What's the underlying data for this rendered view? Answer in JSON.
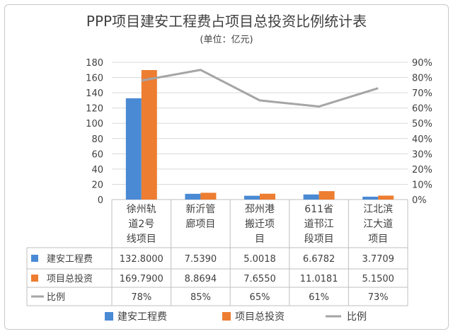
{
  "chart_data": {
    "type": "bar",
    "title": "PPP项目建安工程费占项目总投资比例统计表",
    "subtitle": "(单位：亿元)",
    "categories": [
      [
        "徐州轨",
        "道2号",
        "线项目"
      ],
      [
        "新沂管",
        "廊项目"
      ],
      [
        "邳州港",
        "搬迁项",
        "目"
      ],
      [
        "611省",
        "道邗江",
        "段项目"
      ],
      [
        "江北滨",
        "江大道",
        "项目"
      ]
    ],
    "series": [
      {
        "name": "建安工程费",
        "color": "#4a8ad4",
        "values": [
          132.8,
          7.539,
          5.0018,
          6.6782,
          3.7709
        ],
        "labels": [
          "132.8000",
          "7.5390",
          "5.0018",
          "6.6782",
          "3.7709"
        ]
      },
      {
        "name": "项目总投资",
        "color": "#ed7d31",
        "values": [
          169.79,
          8.8694,
          7.655,
          11.0181,
          5.15
        ],
        "labels": [
          "169.7900",
          "8.8694",
          "7.6550",
          "11.0181",
          "5.1500"
        ]
      },
      {
        "name": "比例",
        "color": "#a5a5a5",
        "type": "line",
        "axis": "right",
        "values": [
          78,
          85,
          65,
          61,
          73
        ],
        "labels": [
          "78%",
          "85%",
          "65%",
          "61%",
          "73%"
        ]
      }
    ],
    "ylim": [
      0,
      180
    ],
    "yticks": [
      "0",
      "20",
      "40",
      "60",
      "80",
      "100",
      "120",
      "140",
      "160",
      "180"
    ],
    "y2lim": [
      0,
      90
    ],
    "y2ticks": [
      "0%",
      "10%",
      "20%",
      "30%",
      "40%",
      "50%",
      "60%",
      "70%",
      "80%",
      "90%"
    ],
    "grid": true,
    "legend_position": "bottom"
  }
}
